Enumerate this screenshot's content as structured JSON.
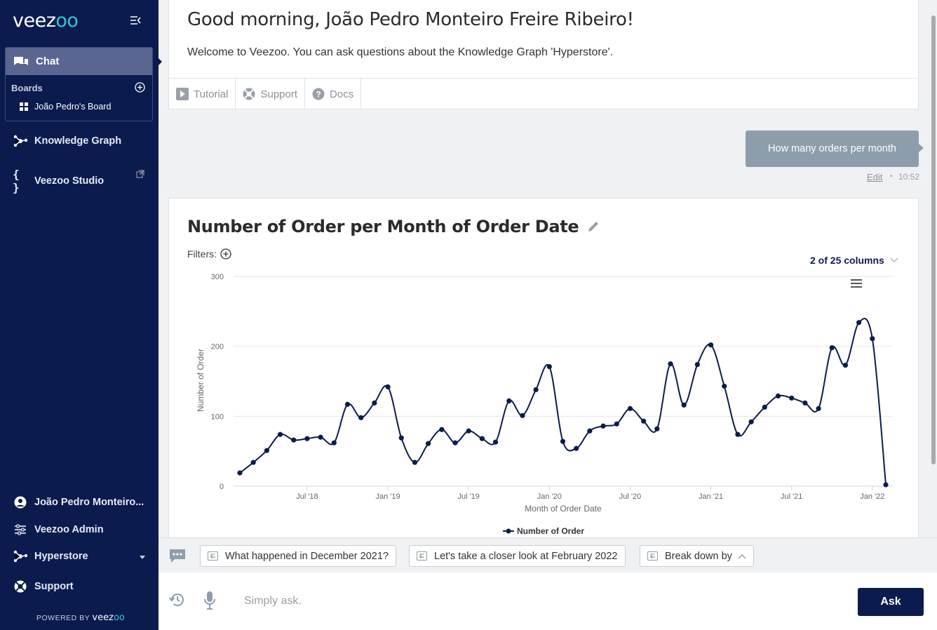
{
  "sidebar": {
    "logo_text": "veez",
    "logo_accent": "oo",
    "chat_label": "Chat",
    "boards_label": "Boards",
    "board_name": "João Pedro's Board",
    "knowledge_graph_label": "Knowledge Graph",
    "studio_label": "Veezoo Studio",
    "user_label": "João Pedro Monteiro...",
    "admin_label": "Veezoo Admin",
    "kg_switch_label": "Hyperstore",
    "support_label": "Support",
    "powered_by": "POWERED BY",
    "powered_brand": "veez",
    "powered_accent": "oo"
  },
  "welcome": {
    "greeting": "Good morning, João Pedro Monteiro Freire Ribeiro!",
    "message": "Welcome to Veezoo. You can ask questions about the Knowledge Graph 'Hyperstore'.",
    "tutorial_label": "Tutorial",
    "support_label": "Support",
    "docs_label": "Docs"
  },
  "question": {
    "text": "How many orders per month",
    "edit_label": "Edit",
    "time": "10:52"
  },
  "answer": {
    "title": "Number of Order per Month of Order Date",
    "filters_label": "Filters:",
    "columns_label": "2 of 25 columns"
  },
  "chart_data": {
    "type": "line",
    "title": "Number of Order per Month of Order Date",
    "xlabel": "Month of Order Date",
    "ylabel": "Number of Order",
    "ylim": [
      0,
      300
    ],
    "y_ticks": [
      "0",
      "100",
      "200",
      "300"
    ],
    "x_tick_labels": [
      "Jul '18",
      "Jan '19",
      "Jul '19",
      "Jan '20",
      "Jul '20",
      "Jan '21",
      "Jul '21",
      "Jan '22"
    ],
    "x_tick_index": [
      5,
      11,
      17,
      23,
      29,
      35,
      41,
      47
    ],
    "legend_position": "bottom-center",
    "series": [
      {
        "name": "Number of Order",
        "color": "#0b1b4d",
        "values": [
          19,
          34,
          51,
          74,
          66,
          68,
          70,
          62,
          117,
          98,
          119,
          142,
          69,
          34,
          61,
          81,
          62,
          79,
          68,
          63,
          122,
          101,
          138,
          171,
          64,
          54,
          79,
          86,
          89,
          111,
          93,
          82,
          175,
          116,
          174,
          202,
          143,
          74,
          92,
          113,
          129,
          126,
          119,
          111,
          198,
          173,
          234,
          211,
          2
        ]
      }
    ]
  },
  "suggestions": {
    "chip1": "What happened in December 2021?",
    "chip2": "Let's take a closer look at February 2022",
    "chip3": "Break down by"
  },
  "input": {
    "placeholder": "Simply ask.",
    "ask_label": "Ask"
  }
}
